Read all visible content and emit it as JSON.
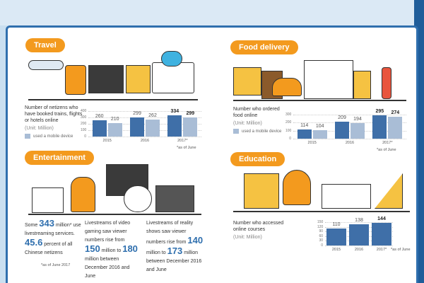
{
  "colors": {
    "accent": "#f39a1e",
    "primary_bar": "#3f6fa8",
    "mobile_bar": "#a9bdd6",
    "frame": "#2f6fae"
  },
  "travel": {
    "title": "Travel",
    "desc": "Number of netizens who have booked trains, flights or hotels online",
    "unit": "(Unit: Million)",
    "legend": "used a mobile device",
    "note": "*as of June",
    "chart_data": {
      "type": "bar",
      "categories": [
        "2015",
        "2016",
        "2017*"
      ],
      "yticks": [
        "400",
        "300",
        "200",
        "100",
        "0"
      ],
      "ylim": [
        0,
        400
      ],
      "series": [
        {
          "values": [
            260,
            299,
            334
          ]
        },
        {
          "name": "used a mobile device",
          "values": [
            210,
            262,
            299
          ]
        }
      ]
    }
  },
  "food": {
    "title": "Food delivery",
    "desc": "Number who ordered food online",
    "unit": "(Unit: Million)",
    "legend": "used a mobile device",
    "note": "*as of June",
    "chart_data": {
      "type": "bar",
      "categories": [
        "2015",
        "2016",
        "2017*"
      ],
      "yticks": [
        "300",
        "200",
        "100",
        "0"
      ],
      "ylim": [
        0,
        300
      ],
      "series": [
        {
          "values": [
            114,
            209,
            295
          ]
        },
        {
          "name": "used a mobile device",
          "values": [
            104,
            194,
            274
          ]
        }
      ]
    }
  },
  "education": {
    "title": "Education",
    "desc": "Number who accessed online courses",
    "unit": "(Unit: Million)",
    "note": "*as of June",
    "chart_data": {
      "type": "bar",
      "categories": [
        "2015",
        "2016",
        "2017*"
      ],
      "yticks": [
        "150",
        "120",
        "90",
        "60",
        "30",
        "0"
      ],
      "ylim": [
        0,
        150
      ],
      "series": [
        {
          "values": [
            110,
            138,
            144
          ]
        }
      ]
    }
  },
  "entertainment": {
    "title": "Entertainment",
    "c1": {
      "a": "Some ",
      "n1": "343",
      "b": " million* use livestreaming services. ",
      "n2": "45.6",
      "c": " percent of all Chinese netizens",
      "note": "*as of June 2017"
    },
    "c2": {
      "a": "Livestreams of video gaming saw viewer numbers rise from ",
      "n1": "150",
      "b": " million to ",
      "n2": "180",
      "c": " million between December 2016 and June"
    },
    "c3": {
      "a": "Livestreams of reality shows saw viewer numbers rise from ",
      "n1": "140",
      "b": " million to ",
      "n2": "173",
      "c": " million between December 2016 and June"
    }
  }
}
